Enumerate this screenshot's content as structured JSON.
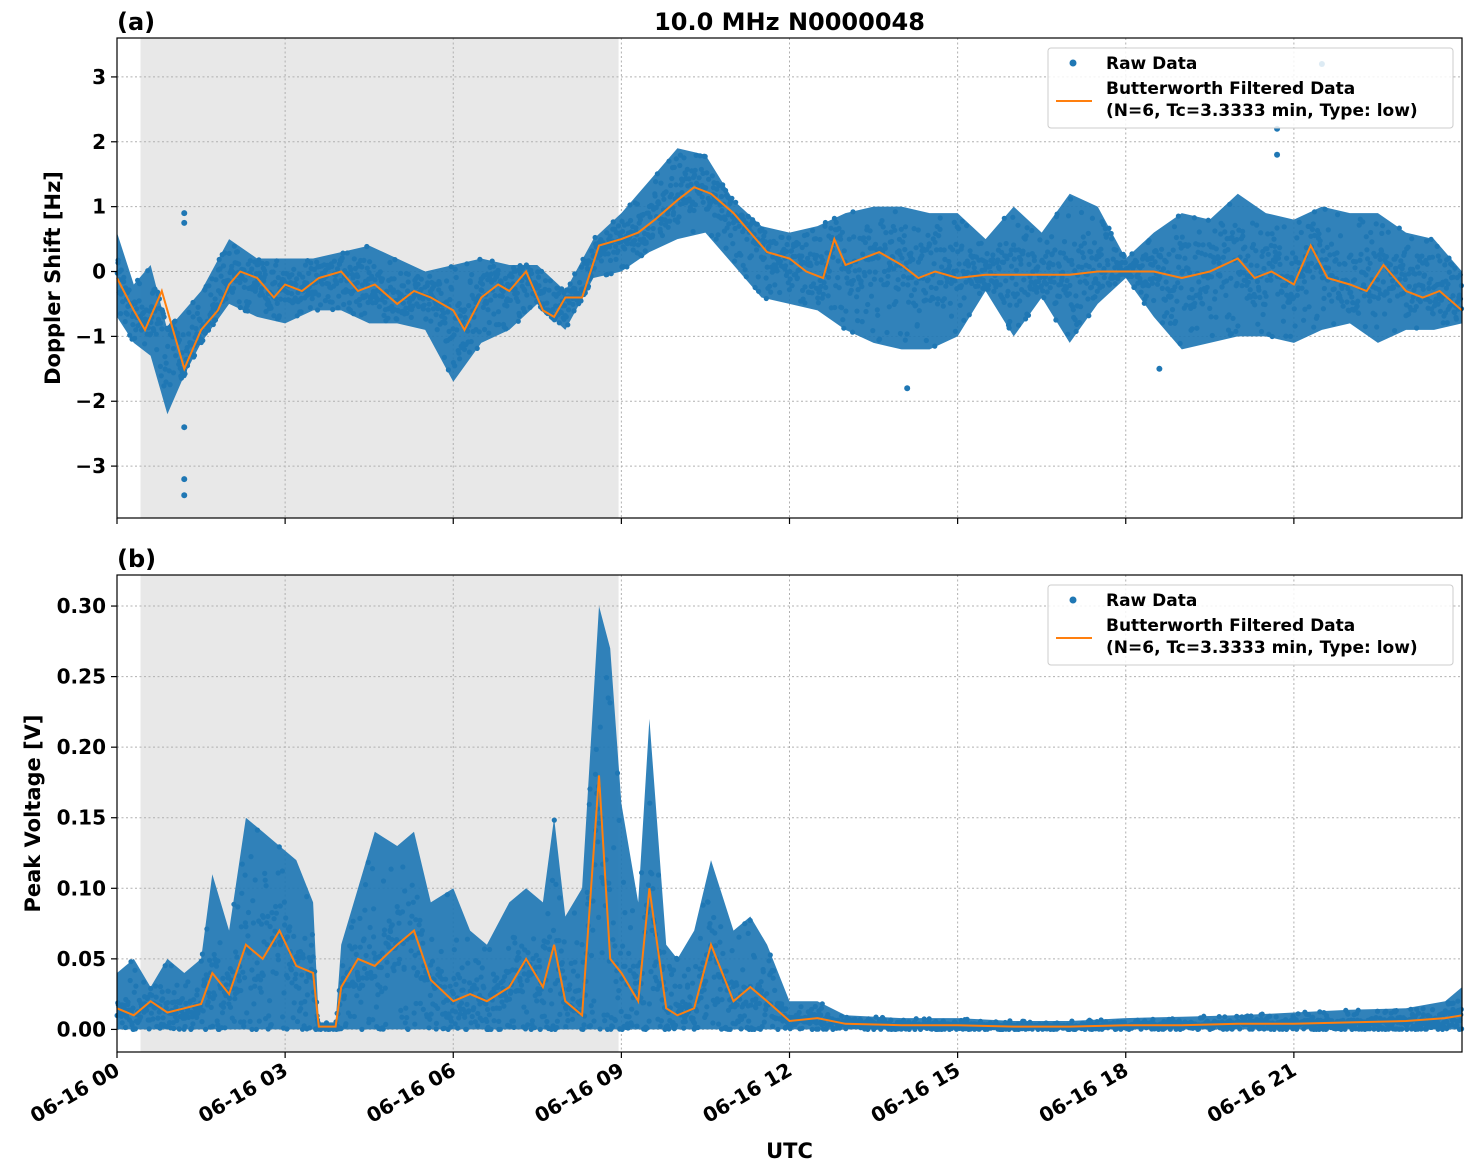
{
  "chart_data": [
    {
      "type": "scatter",
      "panel_label": "(a)",
      "title": "10.0 MHz N0000048",
      "xlabel": "",
      "ylabel": "Doppler Shift [Hz]",
      "ylim": [
        -3.8,
        3.6
      ],
      "yticks": [
        -3,
        -2,
        -1,
        0,
        1,
        2,
        3
      ],
      "yticklabels": [
        "−3",
        "−2",
        "−1",
        "0",
        "1",
        "2",
        "3"
      ],
      "xlim_hours": [
        0,
        24
      ],
      "grid": true,
      "legend_position": "top-right",
      "night_shading_hours": [
        0.42,
        8.95
      ],
      "series": [
        {
          "name": "Raw Data",
          "kind": "scatter",
          "color": "#1f77b4",
          "envelope": {
            "hours": [
              0,
              0.3,
              0.6,
              0.9,
              1.2,
              1.5,
              2.0,
              2.5,
              3.0,
              3.5,
              4.0,
              4.5,
              5.0,
              5.5,
              6.0,
              6.5,
              7.0,
              7.5,
              8.0,
              8.5,
              9.0,
              9.5,
              10.0,
              10.5,
              11.0,
              11.5,
              12.0,
              12.5,
              13.0,
              13.5,
              14.0,
              14.5,
              15.0,
              15.5,
              16.0,
              16.5,
              17.0,
              17.5,
              18.0,
              18.5,
              19.0,
              19.5,
              20.0,
              20.5,
              21.0,
              21.5,
              22.0,
              22.5,
              23.0,
              23.5,
              24.0
            ],
            "upper": [
              0.6,
              -0.2,
              0.1,
              -0.9,
              -0.6,
              -0.3,
              0.5,
              0.2,
              0.2,
              0.2,
              0.3,
              0.4,
              0.2,
              0.0,
              0.1,
              0.2,
              0.1,
              0.1,
              -0.3,
              0.5,
              0.9,
              1.4,
              1.9,
              1.8,
              1.1,
              0.7,
              0.6,
              0.7,
              0.9,
              1.0,
              1.0,
              0.9,
              0.9,
              0.5,
              1.0,
              0.6,
              1.2,
              1.0,
              0.2,
              0.6,
              0.9,
              0.8,
              1.2,
              0.9,
              0.8,
              1.0,
              0.9,
              0.9,
              0.6,
              0.5,
              0.0
            ],
            "lower": [
              -0.7,
              -1.1,
              -1.3,
              -2.2,
              -1.6,
              -1.1,
              -0.5,
              -0.7,
              -0.8,
              -0.6,
              -0.6,
              -0.8,
              -0.8,
              -0.9,
              -1.7,
              -1.1,
              -0.9,
              -0.5,
              -0.9,
              -0.1,
              0.0,
              0.3,
              0.5,
              0.6,
              0.1,
              -0.4,
              -0.5,
              -0.6,
              -0.9,
              -1.1,
              -1.2,
              -1.2,
              -1.0,
              -0.3,
              -1.0,
              -0.4,
              -1.1,
              -0.5,
              -0.1,
              -0.7,
              -1.2,
              -1.1,
              -1.0,
              -1.0,
              -1.1,
              -0.9,
              -0.8,
              -1.1,
              -0.9,
              -0.9,
              -0.8
            ]
          },
          "outliers": [
            [
              1.2,
              0.9
            ],
            [
              1.2,
              0.75
            ],
            [
              1.2,
              -2.4
            ],
            [
              1.2,
              -3.2
            ],
            [
              1.2,
              -3.45
            ],
            [
              14.1,
              -1.8
            ],
            [
              18.6,
              -1.5
            ],
            [
              21.5,
              3.2
            ],
            [
              20.7,
              2.2
            ],
            [
              20.7,
              1.8
            ]
          ]
        },
        {
          "name": "Butterworth Filtered Data\n(N=6, Tc=3.3333 min, Type: low)",
          "kind": "line",
          "color": "#ff7f0e",
          "hours": [
            0,
            0.3,
            0.5,
            0.8,
            1.0,
            1.2,
            1.5,
            1.8,
            2.0,
            2.2,
            2.5,
            2.8,
            3.0,
            3.3,
            3.6,
            4.0,
            4.3,
            4.6,
            5.0,
            5.3,
            5.6,
            6.0,
            6.2,
            6.5,
            6.8,
            7.0,
            7.3,
            7.6,
            7.8,
            8.0,
            8.3,
            8.6,
            9.0,
            9.3,
            9.6,
            10.0,
            10.3,
            10.6,
            11.0,
            11.3,
            11.6,
            12.0,
            12.3,
            12.6,
            12.8,
            13.0,
            13.3,
            13.6,
            14.0,
            14.3,
            14.6,
            15.0,
            15.5,
            16.0,
            16.5,
            17.0,
            17.5,
            18.0,
            18.5,
            19.0,
            19.5,
            20.0,
            20.3,
            20.6,
            21.0,
            21.3,
            21.6,
            22.0,
            22.3,
            22.6,
            23.0,
            23.3,
            23.6,
            24.0
          ],
          "values": [
            -0.1,
            -0.6,
            -0.9,
            -0.3,
            -0.9,
            -1.5,
            -0.9,
            -0.6,
            -0.2,
            0.0,
            -0.1,
            -0.4,
            -0.2,
            -0.3,
            -0.1,
            0.0,
            -0.3,
            -0.2,
            -0.5,
            -0.3,
            -0.4,
            -0.6,
            -0.9,
            -0.4,
            -0.2,
            -0.3,
            0.0,
            -0.6,
            -0.7,
            -0.4,
            -0.4,
            0.4,
            0.5,
            0.6,
            0.8,
            1.1,
            1.3,
            1.2,
            0.9,
            0.6,
            0.3,
            0.2,
            0.0,
            -0.1,
            0.5,
            0.1,
            0.2,
            0.3,
            0.1,
            -0.1,
            0.0,
            -0.1,
            -0.05,
            -0.05,
            -0.05,
            -0.05,
            0.0,
            0.0,
            0.0,
            -0.1,
            0.0,
            0.2,
            -0.1,
            0.0,
            -0.2,
            0.4,
            -0.1,
            -0.2,
            -0.3,
            0.1,
            -0.3,
            -0.4,
            -0.3,
            -0.6
          ]
        }
      ]
    },
    {
      "type": "scatter",
      "panel_label": "(b)",
      "title": "",
      "xlabel": "UTC",
      "ylabel": "Peak Voltage [V]",
      "ylim": [
        -0.016,
        0.322
      ],
      "yticks": [
        0.0,
        0.05,
        0.1,
        0.15,
        0.2,
        0.25,
        0.3
      ],
      "yticklabels": [
        "0.00",
        "0.05",
        "0.10",
        "0.15",
        "0.20",
        "0.25",
        "0.30"
      ],
      "xlim_hours": [
        0,
        24
      ],
      "xticks_hours": [
        0,
        3,
        6,
        9,
        12,
        15,
        18,
        21
      ],
      "xticklabels": [
        "06-16 00",
        "06-16 03",
        "06-16 06",
        "06-16 09",
        "06-16 12",
        "06-16 15",
        "06-16 18",
        "06-16 21"
      ],
      "grid": true,
      "legend_position": "top-right",
      "night_shading_hours": [
        0.42,
        8.95
      ],
      "series": [
        {
          "name": "Raw Data",
          "kind": "scatter",
          "color": "#1f77b4",
          "envelope": {
            "hours": [
              0,
              0.3,
              0.6,
              0.9,
              1.2,
              1.5,
              1.7,
              2.0,
              2.3,
              2.6,
              2.9,
              3.2,
              3.5,
              3.6,
              3.9,
              4.0,
              4.3,
              4.6,
              5.0,
              5.3,
              5.6,
              6.0,
              6.3,
              6.6,
              7.0,
              7.3,
              7.6,
              7.8,
              8.0,
              8.3,
              8.6,
              8.8,
              9.0,
              9.3,
              9.5,
              9.8,
              10.0,
              10.3,
              10.6,
              11.0,
              11.3,
              11.6,
              12.0,
              12.5,
              13.0,
              14.0,
              15.0,
              16.0,
              17.0,
              18.0,
              19.0,
              20.0,
              21.0,
              22.0,
              23.0,
              23.7,
              24.0
            ],
            "upper": [
              0.04,
              0.05,
              0.03,
              0.05,
              0.04,
              0.05,
              0.11,
              0.07,
              0.15,
              0.14,
              0.13,
              0.12,
              0.09,
              0.005,
              0.005,
              0.06,
              0.1,
              0.14,
              0.13,
              0.14,
              0.09,
              0.1,
              0.07,
              0.06,
              0.09,
              0.1,
              0.09,
              0.15,
              0.08,
              0.1,
              0.3,
              0.27,
              0.16,
              0.09,
              0.22,
              0.06,
              0.05,
              0.07,
              0.12,
              0.07,
              0.08,
              0.06,
              0.02,
              0.02,
              0.01,
              0.008,
              0.008,
              0.006,
              0.006,
              0.008,
              0.009,
              0.01,
              0.012,
              0.014,
              0.015,
              0.02,
              0.03
            ],
            "lower": [
              0.0,
              0.0,
              0.0,
              0.0,
              0.0,
              0.0,
              0.0,
              0.0,
              0.0,
              0.0,
              0.0,
              0.0,
              0.0,
              0.0,
              0.0,
              0.0,
              0.0,
              0.0,
              0.0,
              0.0,
              0.0,
              0.0,
              0.0,
              0.0,
              0.0,
              0.0,
              0.0,
              0.0,
              0.0,
              0.0,
              0.0,
              0.0,
              0.0,
              0.0,
              0.0,
              0.0,
              0.0,
              0.0,
              0.0,
              0.0,
              0.0,
              0.0,
              0.0,
              0.0,
              0.0,
              0.0,
              0.0,
              0.0,
              0.0,
              0.0,
              0.0,
              0.0,
              0.0,
              0.0,
              0.0,
              0.0,
              0.0
            ]
          }
        },
        {
          "name": "Butterworth Filtered Data\n(N=6, Tc=3.3333 min, Type: low)",
          "kind": "line",
          "color": "#ff7f0e",
          "hours": [
            0,
            0.3,
            0.6,
            0.9,
            1.2,
            1.5,
            1.7,
            2.0,
            2.3,
            2.6,
            2.9,
            3.2,
            3.5,
            3.6,
            3.9,
            4.0,
            4.3,
            4.6,
            5.0,
            5.3,
            5.6,
            6.0,
            6.3,
            6.6,
            7.0,
            7.3,
            7.6,
            7.8,
            8.0,
            8.3,
            8.6,
            8.8,
            9.0,
            9.3,
            9.5,
            9.8,
            10.0,
            10.3,
            10.6,
            11.0,
            11.3,
            11.6,
            12.0,
            12.5,
            13.0,
            14.0,
            15.0,
            16.0,
            17.0,
            18.0,
            19.0,
            20.0,
            21.0,
            22.0,
            23.0,
            23.7,
            24.0
          ],
          "values": [
            0.015,
            0.01,
            0.02,
            0.012,
            0.015,
            0.018,
            0.04,
            0.025,
            0.06,
            0.05,
            0.07,
            0.045,
            0.04,
            0.002,
            0.002,
            0.03,
            0.05,
            0.045,
            0.06,
            0.07,
            0.035,
            0.02,
            0.025,
            0.02,
            0.03,
            0.05,
            0.03,
            0.06,
            0.02,
            0.01,
            0.18,
            0.05,
            0.04,
            0.02,
            0.1,
            0.015,
            0.01,
            0.015,
            0.06,
            0.02,
            0.03,
            0.02,
            0.006,
            0.008,
            0.004,
            0.003,
            0.003,
            0.002,
            0.002,
            0.003,
            0.003,
            0.004,
            0.004,
            0.005,
            0.006,
            0.008,
            0.01
          ]
        }
      ]
    }
  ]
}
